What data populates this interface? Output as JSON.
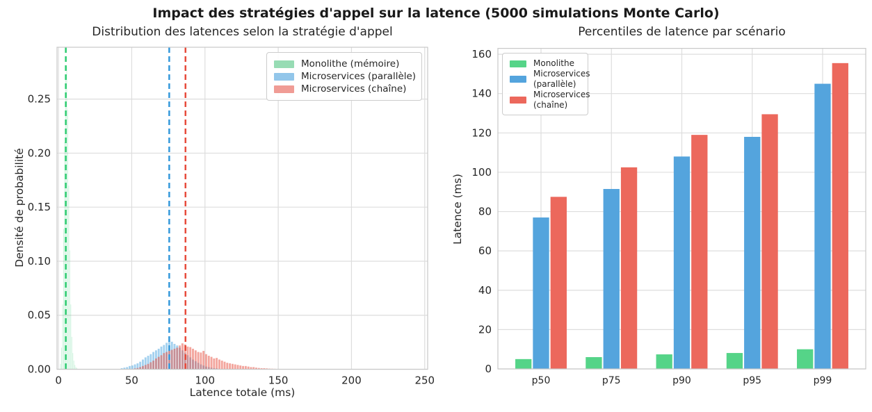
{
  "figure": {
    "title": "Impact des stratégies d'appel sur la latence (5000 simulations Monte Carlo)",
    "text_color": "#262626",
    "grid_color": "#dddddd",
    "spine_color": "#c8c8c8"
  },
  "chart_data": [
    {
      "type": "histogram",
      "title": "Distribution des latences selon la stratégie d'appel",
      "xlabel": "Latence totale (ms)",
      "ylabel": "Densité de probabilité",
      "xlim": [
        -1,
        252
      ],
      "ylim": [
        0,
        0.298
      ],
      "xticks": [
        0,
        50,
        100,
        150,
        200,
        250
      ],
      "yticks": [
        0,
        0.05,
        0.1,
        0.15,
        0.2,
        0.25
      ],
      "ytick_labels": [
        "0.00",
        "0.05",
        "0.10",
        "0.15",
        "0.20",
        "0.25"
      ],
      "grid": true,
      "legend_position": "top-right",
      "legend": [
        {
          "label": "Monolithe (mémoire)",
          "patch_color": "#97dcb4"
        },
        {
          "label": "Microservices (parallèle)",
          "patch_color": "#92c6ea"
        },
        {
          "label": "Microservices (chaîne)",
          "patch_color": "#f09c95"
        }
      ],
      "series": [
        {
          "name": "Monolithe (mémoire)",
          "line_color": "#2ecc71",
          "fill": "rgba(46,204,113,0.22)",
          "mean": 5.0,
          "bin_width": 0.7,
          "bars": [
            [
              1.4,
              0.005
            ],
            [
              2.1,
              0.02
            ],
            [
              2.8,
              0.06
            ],
            [
              3.5,
              0.13
            ],
            [
              4.2,
              0.21
            ],
            [
              4.9,
              0.27
            ],
            [
              5.6,
              0.28
            ],
            [
              6.3,
              0.24
            ],
            [
              7.0,
              0.17
            ],
            [
              7.7,
              0.11
            ],
            [
              8.4,
              0.06
            ],
            [
              9.1,
              0.03
            ],
            [
              9.8,
              0.015
            ],
            [
              10.5,
              0.008
            ],
            [
              11.2,
              0.004
            ],
            [
              11.9,
              0.002
            ],
            [
              12.6,
              0.001
            ]
          ]
        },
        {
          "name": "Microservices (parallèle)",
          "line_color": "#3498db",
          "fill": "rgba(52,152,219,0.45)",
          "mean": 75.6,
          "bin_width": 1.8,
          "bars": [
            [
              43.2,
              0.001
            ],
            [
              45.0,
              0.0015
            ],
            [
              46.8,
              0.002
            ],
            [
              48.6,
              0.003
            ],
            [
              50.4,
              0.0035
            ],
            [
              52.2,
              0.0045
            ],
            [
              54.0,
              0.0055
            ],
            [
              55.8,
              0.007
            ],
            [
              57.6,
              0.009
            ],
            [
              59.4,
              0.011
            ],
            [
              61.2,
              0.0125
            ],
            [
              63.0,
              0.014
            ],
            [
              64.8,
              0.016
            ],
            [
              66.6,
              0.0175
            ],
            [
              68.4,
              0.019
            ],
            [
              70.2,
              0.021
            ],
            [
              72.0,
              0.0225
            ],
            [
              73.8,
              0.0245
            ],
            [
              75.6,
              0.026
            ],
            [
              77.4,
              0.0255
            ],
            [
              79.2,
              0.0235
            ],
            [
              81.0,
              0.022
            ],
            [
              82.8,
              0.02
            ],
            [
              84.6,
              0.0175
            ],
            [
              86.4,
              0.015
            ],
            [
              88.2,
              0.013
            ],
            [
              90.0,
              0.011
            ],
            [
              91.8,
              0.009
            ],
            [
              93.6,
              0.0075
            ],
            [
              95.4,
              0.006
            ],
            [
              97.2,
              0.0045
            ],
            [
              99.0,
              0.0035
            ],
            [
              100.8,
              0.0025
            ],
            [
              102.6,
              0.002
            ],
            [
              104.4,
              0.0015
            ],
            [
              106.2,
              0.001
            ],
            [
              108.0,
              0.0008
            ]
          ]
        },
        {
          "name": "Microservices (chaîne)",
          "line_color": "#e74c3c",
          "fill": "rgba(231,76,60,0.5)",
          "mean": 86.7,
          "bin_width": 1.8,
          "bars": [
            [
              52.2,
              0.0008
            ],
            [
              54.0,
              0.0012
            ],
            [
              55.8,
              0.002
            ],
            [
              57.6,
              0.003
            ],
            [
              59.4,
              0.004
            ],
            [
              61.2,
              0.005
            ],
            [
              63.0,
              0.0065
            ],
            [
              64.8,
              0.008
            ],
            [
              66.6,
              0.01
            ],
            [
              68.4,
              0.0115
            ],
            [
              70.2,
              0.013
            ],
            [
              72.0,
              0.015
            ],
            [
              73.8,
              0.016
            ],
            [
              75.6,
              0.017
            ],
            [
              77.4,
              0.018
            ],
            [
              79.2,
              0.019
            ],
            [
              81.0,
              0.02
            ],
            [
              82.8,
              0.022
            ],
            [
              84.6,
              0.024
            ],
            [
              86.4,
              0.023
            ],
            [
              88.2,
              0.021
            ],
            [
              90.0,
              0.0205
            ],
            [
              91.8,
              0.019
            ],
            [
              93.6,
              0.0175
            ],
            [
              95.4,
              0.016
            ],
            [
              97.2,
              0.0155
            ],
            [
              99.0,
              0.017
            ],
            [
              100.8,
              0.014
            ],
            [
              102.6,
              0.0125
            ],
            [
              104.4,
              0.0115
            ],
            [
              106.2,
              0.01
            ],
            [
              108.0,
              0.0105
            ],
            [
              109.8,
              0.009
            ],
            [
              111.6,
              0.008
            ],
            [
              113.4,
              0.007
            ],
            [
              115.2,
              0.006
            ],
            [
              117.0,
              0.0055
            ],
            [
              118.8,
              0.005
            ],
            [
              120.6,
              0.0045
            ],
            [
              122.4,
              0.004
            ],
            [
              124.2,
              0.0035
            ],
            [
              126.0,
              0.003
            ],
            [
              127.8,
              0.003
            ],
            [
              129.6,
              0.0025
            ],
            [
              131.4,
              0.002
            ],
            [
              133.2,
              0.002
            ],
            [
              135.0,
              0.0015
            ],
            [
              136.8,
              0.0012
            ],
            [
              138.6,
              0.001
            ],
            [
              140.4,
              0.001
            ],
            [
              142.2,
              0.0008
            ],
            [
              144.0,
              0.0006
            ],
            [
              145.8,
              0.0005
            ],
            [
              147.6,
              0.0004
            ]
          ]
        }
      ]
    },
    {
      "type": "bar",
      "title": "Percentiles de latence par scénario",
      "xlabel": "",
      "ylabel": "Latence (ms)",
      "categories": [
        "p50",
        "p75",
        "p90",
        "p95",
        "p99"
      ],
      "ylim": [
        0,
        163
      ],
      "yticks": [
        0,
        20,
        40,
        60,
        80,
        100,
        120,
        140,
        160
      ],
      "grid": true,
      "legend_position": "top-left",
      "legend": [
        {
          "label": "Monolithe",
          "patch_color": "#55d488"
        },
        {
          "label": "Microservices (parallèle)",
          "patch_color": "#54a4dd"
        },
        {
          "label": "Microservices (chaîne)",
          "patch_color": "#ec685c"
        }
      ],
      "series": [
        {
          "name": "Monolithe",
          "color": "#55d488",
          "values": [
            5.0,
            6.0,
            7.4,
            8.1,
            10.0
          ]
        },
        {
          "name": "Microservices (parallèle)",
          "color": "#54a4dd",
          "values": [
            77.0,
            91.5,
            108.0,
            118.0,
            145.0
          ]
        },
        {
          "name": "Microservices (chaîne)",
          "color": "#ec685c",
          "values": [
            87.5,
            102.5,
            119.0,
            129.5,
            155.5
          ]
        }
      ]
    }
  ]
}
